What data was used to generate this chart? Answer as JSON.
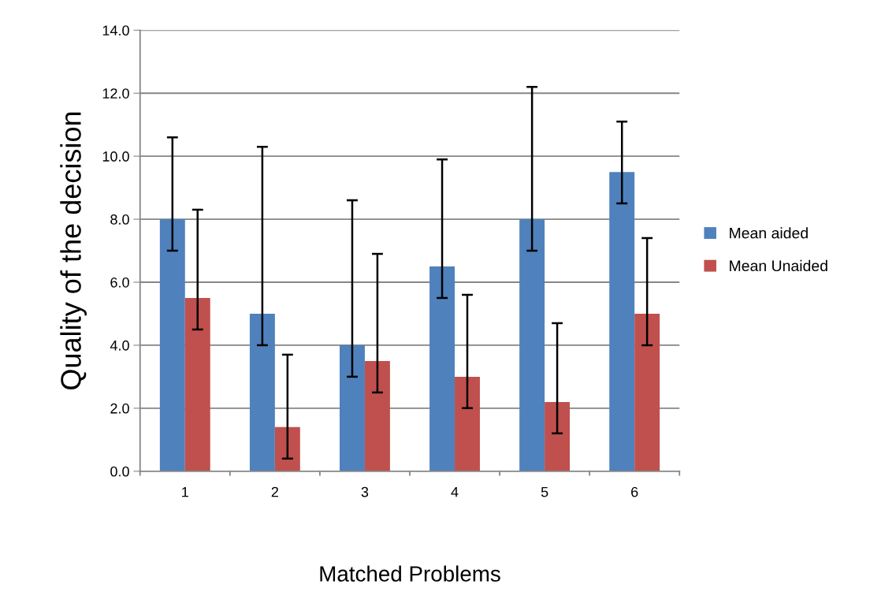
{
  "chart_data": {
    "type": "bar",
    "xlabel": "Matched Problems",
    "ylabel": "Quality of the decision",
    "categories": [
      "1",
      "2",
      "3",
      "4",
      "5",
      "6"
    ],
    "series": [
      {
        "name": "Mean aided",
        "color": "#4f81bd",
        "values": [
          8.0,
          5.0,
          4.0,
          6.5,
          8.0,
          9.5
        ],
        "errors": [
          [
            7.0,
            10.6
          ],
          [
            4.0,
            10.3
          ],
          [
            3.0,
            8.6
          ],
          [
            5.5,
            9.9
          ],
          [
            7.0,
            12.2
          ],
          [
            8.5,
            11.1
          ]
        ]
      },
      {
        "name": "Mean Unaided",
        "color": "#c0504d",
        "values": [
          5.5,
          1.4,
          3.5,
          3.0,
          2.2,
          5.0
        ],
        "errors": [
          [
            4.5,
            8.3
          ],
          [
            0.4,
            3.7
          ],
          [
            2.5,
            6.9
          ],
          [
            2.0,
            5.6
          ],
          [
            1.2,
            4.7
          ],
          [
            4.0,
            7.4
          ]
        ]
      }
    ],
    "ylim": [
      0,
      14
    ],
    "yticks": [
      {
        "value": 0,
        "label": "0.0"
      },
      {
        "value": 2,
        "label": "2.0"
      },
      {
        "value": 4,
        "label": "4.0"
      },
      {
        "value": 6,
        "label": "6.0"
      },
      {
        "value": 8,
        "label": "8.0"
      },
      {
        "value": 10,
        "label": "10.0"
      },
      {
        "value": 12,
        "label": "12.0"
      },
      {
        "value": 14,
        "label": "14.0"
      }
    ],
    "grid": "y",
    "legend": "right"
  }
}
